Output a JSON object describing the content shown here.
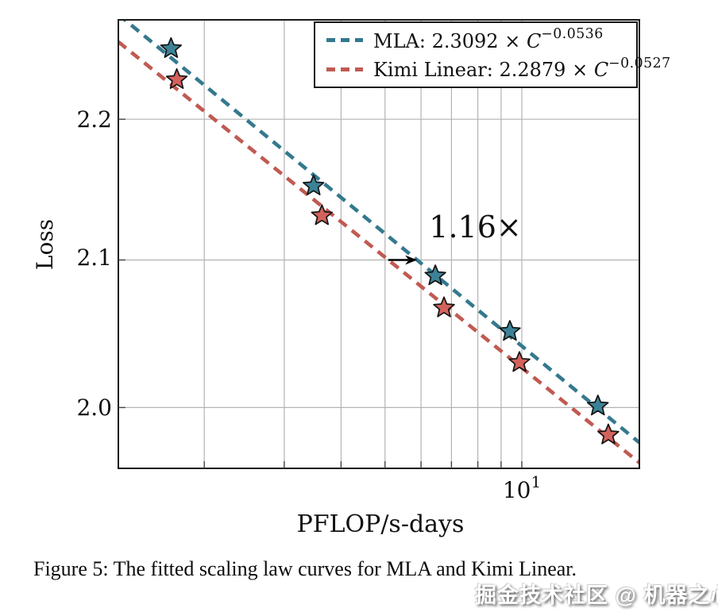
{
  "figure_caption": {
    "text": "Figure 5: The fitted scaling law curves for MLA and Kimi Linear."
  },
  "watermark": {
    "text": "掘金技术社区 @ 机器之心"
  },
  "legend": {
    "items": [
      {
        "name": "MLA:",
        "coefficient": "2.3092",
        "times": "×",
        "variable": "C",
        "exponent": "−0.0536"
      },
      {
        "name": "Kimi Linear:",
        "coefficient": "2.2879",
        "times": "×",
        "variable": "C",
        "exponent": "−0.0527"
      }
    ]
  },
  "chart_data": {
    "type": "scatter",
    "title": "",
    "xlabel": "PFLOP/s-days",
    "ylabel": "Loss",
    "x_scale": "log10",
    "y_scale": "log10",
    "x_range": [
      1.294,
      18.14
    ],
    "y_range": [
      1.9602,
      2.2735
    ],
    "x_gridlines": [
      2,
      3,
      4,
      5,
      6,
      7,
      8,
      9,
      10
    ],
    "y_gridlines": [
      2.0,
      2.1,
      2.2
    ],
    "y_tick_labels": [
      "2.2",
      "2.1",
      "2.0"
    ],
    "x_tick": {
      "base": "10",
      "exponent": "1",
      "value": 10
    },
    "grid_color": "#b3b3b3",
    "legend_position": "top-right",
    "series": [
      {
        "name": "MLA",
        "color": "#34798e",
        "star_fill": "#3c8296",
        "fit": {
          "coefficient": 2.3092,
          "exponent": -0.0536
        },
        "points": [
          [
            1.69,
            2.252
          ],
          [
            3.48,
            2.152
          ],
          [
            6.45,
            2.089
          ],
          [
            9.41,
            2.051
          ],
          [
            14.7,
            2.001
          ]
        ]
      },
      {
        "name": "Kimi Linear",
        "color": "#c05a52",
        "star_fill": "#d4625c",
        "fit": {
          "coefficient": 2.2879,
          "exponent": -0.0527
        },
        "points": [
          [
            1.74,
            2.229
          ],
          [
            3.63,
            2.131
          ],
          [
            6.74,
            2.067
          ],
          [
            9.88,
            2.03
          ],
          [
            15.5,
            1.982
          ]
        ]
      }
    ],
    "annotation": {
      "label": "1.16×",
      "at_loss": 2.1,
      "c_from": 5.08,
      "c_to": 5.88,
      "label_c": 7.9,
      "label_loss": 2.123
    }
  }
}
